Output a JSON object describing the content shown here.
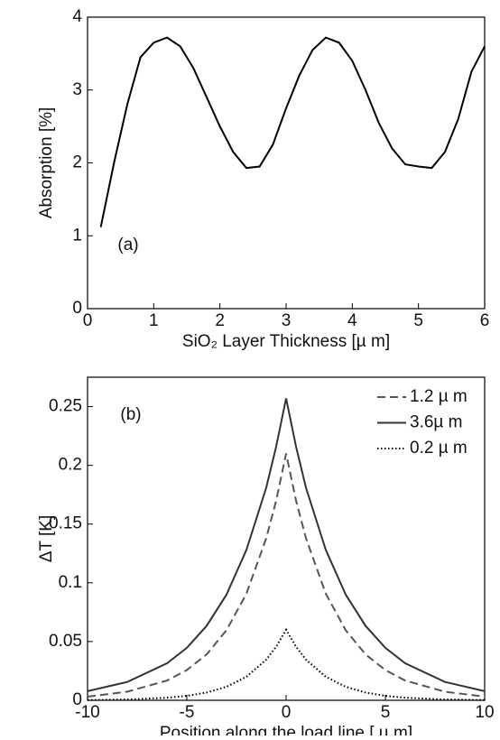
{
  "chart_data": [
    {
      "type": "line",
      "annotation": "(a)",
      "xlabel": "SiO₂ Layer Thickness [µ m]",
      "ylabel": "Absorption [%]",
      "x": [
        0.2,
        0.4,
        0.6,
        0.8,
        1.0,
        1.2,
        1.4,
        1.6,
        1.8,
        2.0,
        2.2,
        2.4,
        2.6,
        2.8,
        3.0,
        3.2,
        3.4,
        3.6,
        3.8,
        4.0,
        4.2,
        4.4,
        4.6,
        4.8,
        5.0,
        5.2,
        5.4,
        5.6,
        5.8,
        6.0
      ],
      "series": [
        {
          "color": "#000000",
          "dash": "solid",
          "values": [
            1.12,
            2.0,
            2.8,
            3.45,
            3.65,
            3.72,
            3.6,
            3.3,
            2.9,
            2.5,
            2.15,
            1.93,
            1.95,
            2.25,
            2.75,
            3.2,
            3.55,
            3.72,
            3.65,
            3.4,
            3.0,
            2.55,
            2.2,
            1.98,
            1.95,
            1.93,
            2.15,
            2.6,
            3.25,
            3.6
          ]
        }
      ],
      "xlim": [
        0,
        6
      ],
      "xticks": [
        0,
        1,
        2,
        3,
        4,
        5,
        6
      ],
      "ylim": [
        0,
        4
      ],
      "yticks": [
        0,
        1,
        2,
        3,
        4
      ]
    },
    {
      "type": "line",
      "annotation": "(b)",
      "xlabel": "Position along the load line [ µ m]",
      "ylabel": "ΔT [K]",
      "x": [
        -10,
        -8,
        -6,
        -5,
        -4,
        -3,
        -2,
        -1,
        -0.5,
        0,
        0.5,
        1,
        2,
        3,
        4,
        5,
        6,
        8,
        10
      ],
      "series": [
        {
          "name": "1.2 µ m",
          "color": "#555555",
          "dash": "dashed",
          "values": [
            0.0031,
            0.0073,
            0.0168,
            0.0257,
            0.0391,
            0.0597,
            0.0907,
            0.138,
            0.17,
            0.21,
            0.17,
            0.138,
            0.0907,
            0.0597,
            0.0391,
            0.0257,
            0.0168,
            0.0073,
            0.0031
          ]
        },
        {
          "name": "3.6µ m",
          "color": "#333333",
          "dash": "solid",
          "values": [
            0.0078,
            0.0156,
            0.0315,
            0.0446,
            0.0634,
            0.09,
            0.128,
            0.181,
            0.216,
            0.257,
            0.216,
            0.181,
            0.128,
            0.09,
            0.0634,
            0.0446,
            0.0315,
            0.0156,
            0.0078
          ]
        },
        {
          "name": "0.2 µ m",
          "color": "#000000",
          "dash": "dotted",
          "values": [
            0.0002,
            0.0007,
            0.0022,
            0.0038,
            0.0066,
            0.0115,
            0.02,
            0.0346,
            0.0456,
            0.06,
            0.0456,
            0.0346,
            0.02,
            0.0115,
            0.0066,
            0.0038,
            0.0022,
            0.0007,
            0.0002
          ]
        }
      ],
      "xlim": [
        -10,
        10
      ],
      "xticks": [
        -10,
        -5,
        0,
        5,
        10
      ],
      "ylim": [
        0,
        0.275
      ],
      "yticks": [
        0,
        0.05,
        0.1,
        0.15,
        0.2,
        0.25
      ],
      "legend": "upper right"
    }
  ]
}
